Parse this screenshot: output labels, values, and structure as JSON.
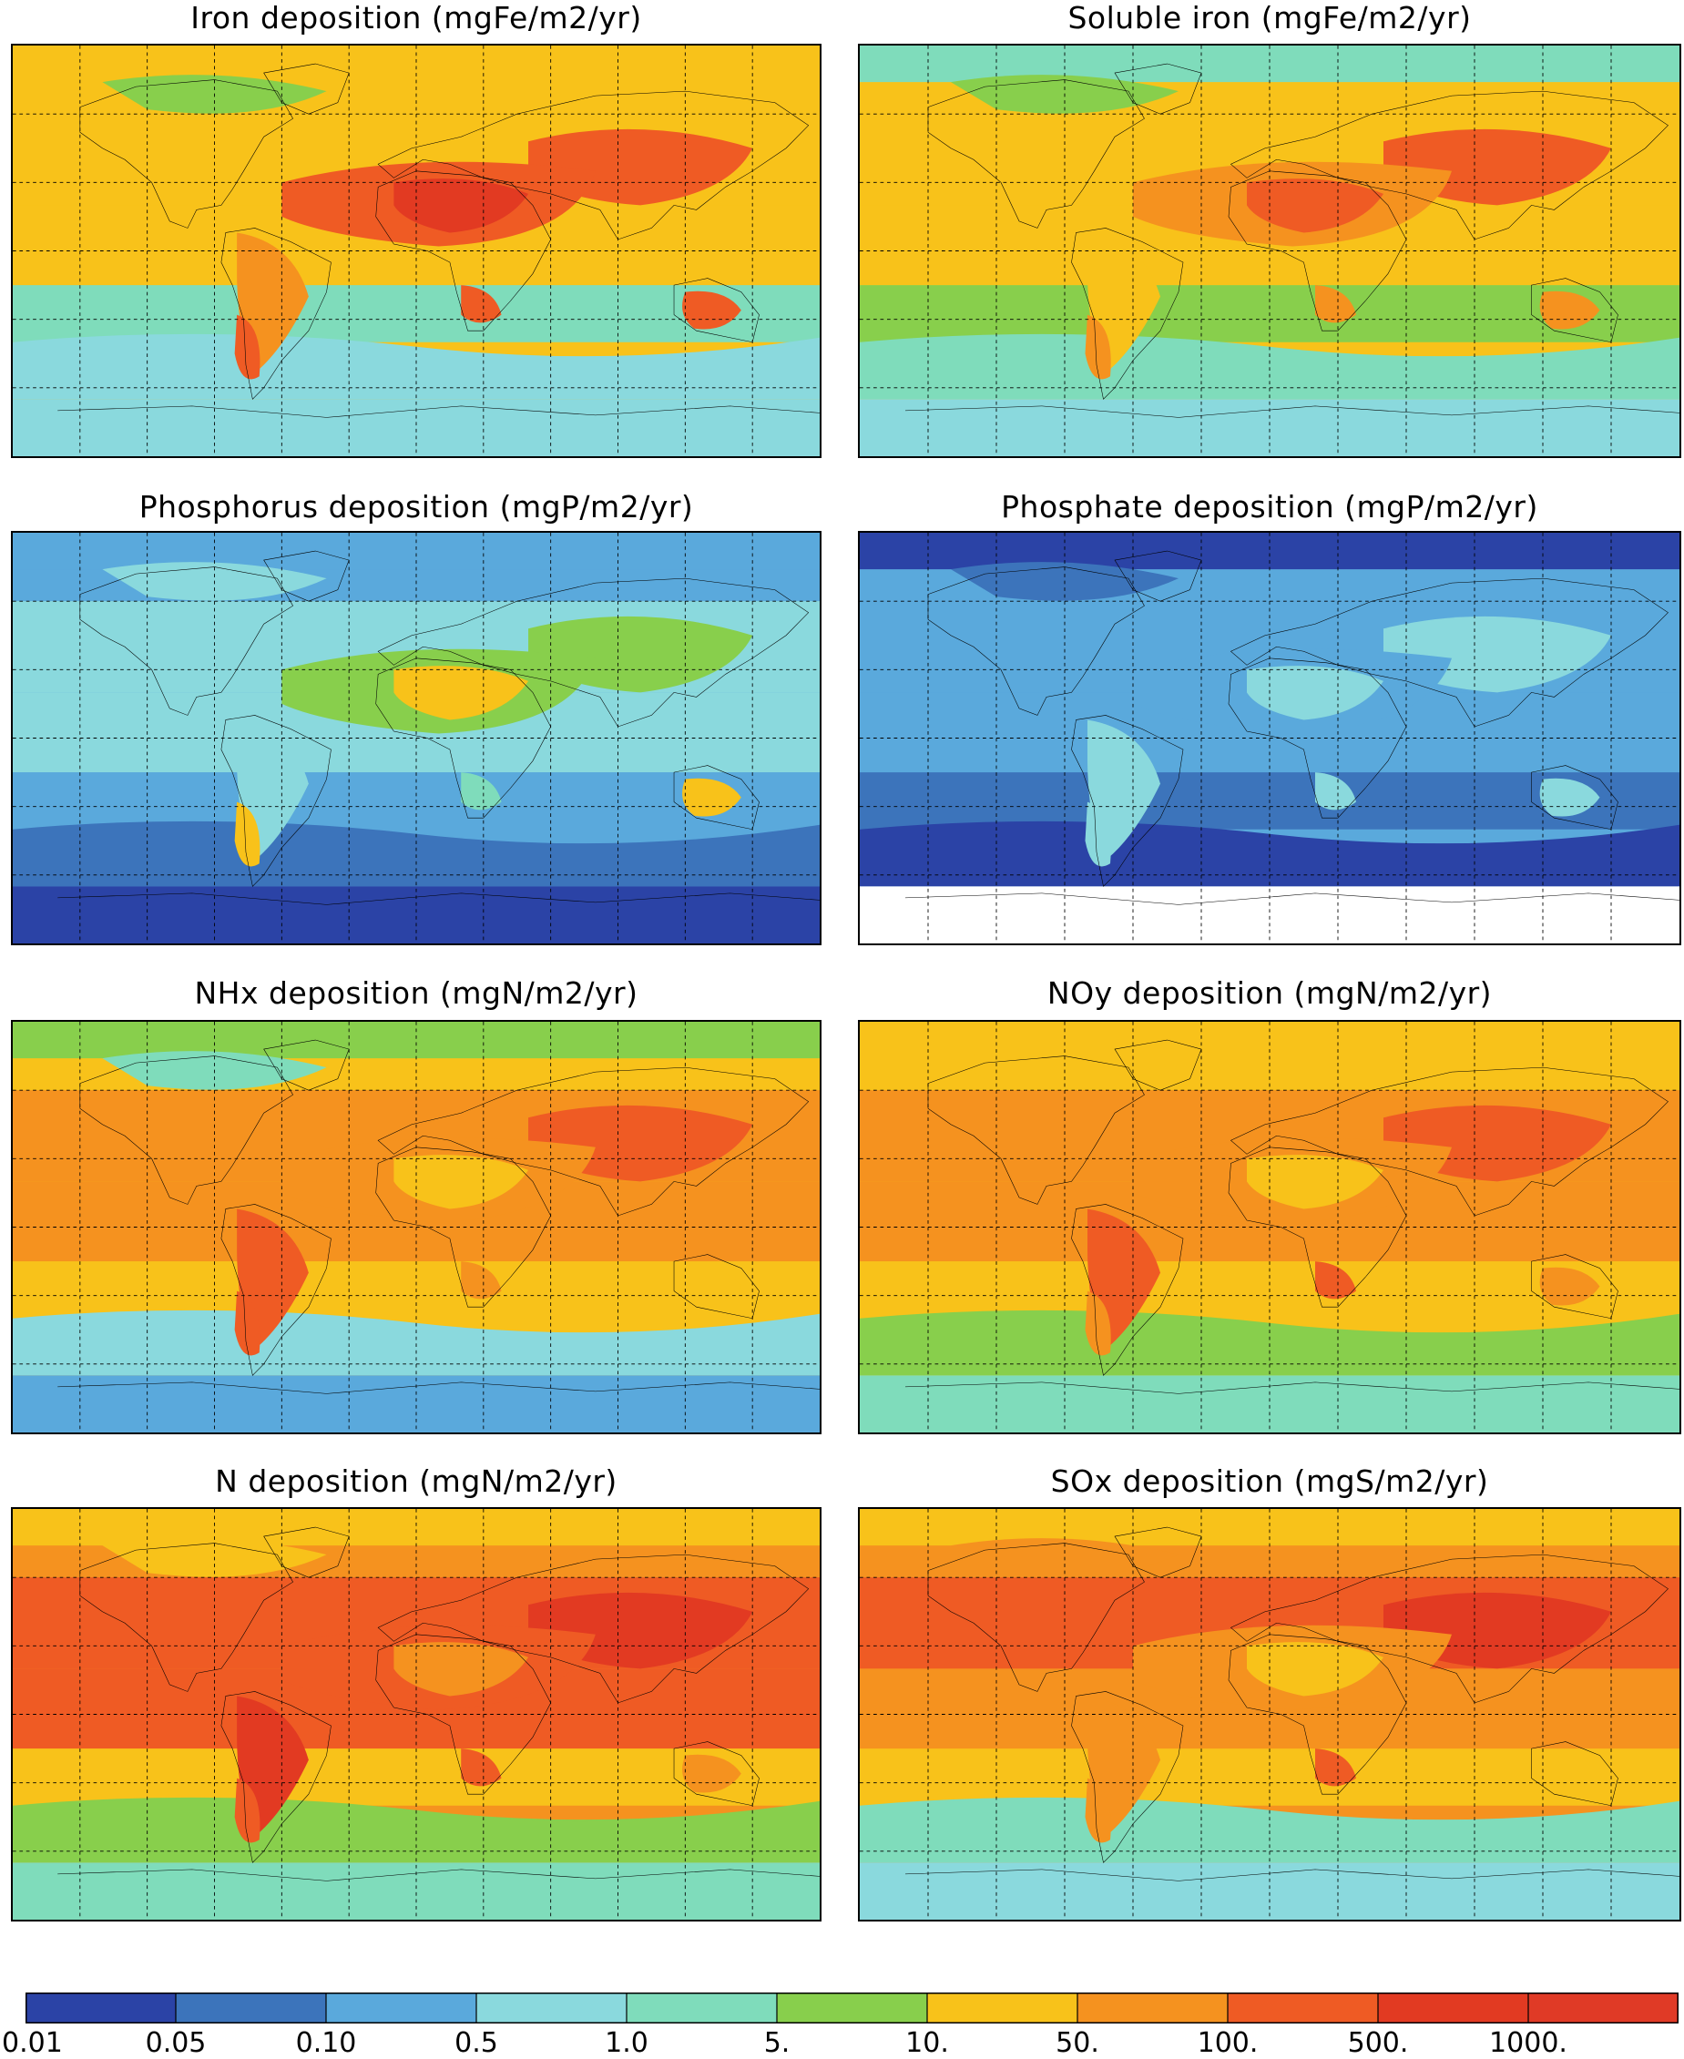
{
  "panels": [
    {
      "id": "iron",
      "title": "Iron deposition (mgFe/m2/yr)",
      "base": 6,
      "regions": {
        "arctic": 6,
        "arctic_land": 5,
        "northern_mid": 6,
        "sahara": 9,
        "saharan_plume": 8,
        "central_asia": 8,
        "tropics": 6,
        "southern_mid": 4,
        "southern_ocean": 3,
        "antarctica": 3,
        "australia_core": 8,
        "patagonia": 8,
        "south_africa": 8,
        "sa_west": 7
      }
    },
    {
      "id": "soluble-iron",
      "title": "Soluble iron (mgFe/m2/yr)",
      "base": 6,
      "regions": {
        "arctic": 4,
        "arctic_land": 5,
        "northern_mid": 6,
        "sahara": 8,
        "saharan_plume": 7,
        "central_asia": 8,
        "tropics": 6,
        "southern_mid": 5,
        "southern_ocean": 4,
        "antarctica": 3,
        "australia_core": 7,
        "patagonia": 7,
        "south_africa": 7,
        "sa_west": 6
      }
    },
    {
      "id": "phosphorus",
      "title": "Phosphorus deposition (mgP/m2/yr)",
      "base": 2,
      "regions": {
        "arctic": 2,
        "arctic_land": 3,
        "northern_mid": 3,
        "sahara": 6,
        "saharan_plume": 5,
        "central_asia": 5,
        "tropics": 3,
        "southern_mid": 2,
        "southern_ocean": 1,
        "antarctica": 0,
        "australia_core": 6,
        "patagonia": 6,
        "south_africa": 4,
        "sa_west": 3
      }
    },
    {
      "id": "phosphate",
      "title": "Phosphate deposition (mgP/m2/yr)",
      "base": 2,
      "regions": {
        "arctic": 0,
        "arctic_land": 1,
        "northern_mid": 2,
        "sahara": 3,
        "saharan_plume": 2,
        "central_asia": 3,
        "tropics": 2,
        "southern_mid": 1,
        "southern_ocean": 0,
        "antarctica": -1,
        "australia_core": 3,
        "patagonia": 3,
        "south_africa": 3,
        "sa_west": 3
      }
    },
    {
      "id": "nhx",
      "title": "NHx deposition (mgN/m2/yr)",
      "base": 6,
      "regions": {
        "arctic": 5,
        "arctic_land": 4,
        "northern_mid": 7,
        "sahara": 6,
        "saharan_plume": 7,
        "central_asia": 8,
        "tropics": 7,
        "southern_mid": 6,
        "southern_ocean": 3,
        "antarctica": 2,
        "australia_core": 6,
        "patagonia": 8,
        "south_africa": 7,
        "sa_west": 8
      }
    },
    {
      "id": "noy",
      "title": "NOy deposition (mgN/m2/yr)",
      "base": 6,
      "regions": {
        "arctic": 6,
        "arctic_land": 6,
        "northern_mid": 7,
        "sahara": 6,
        "saharan_plume": 7,
        "central_asia": 8,
        "tropics": 7,
        "southern_mid": 6,
        "southern_ocean": 5,
        "antarctica": 4,
        "australia_core": 7,
        "patagonia": 7,
        "south_africa": 8,
        "sa_west": 8
      }
    },
    {
      "id": "n",
      "title": "N deposition (mgN/m2/yr)",
      "base": 7,
      "regions": {
        "arctic": 6,
        "arctic_land": 6,
        "northern_mid": 8,
        "sahara": 7,
        "saharan_plume": 8,
        "central_asia": 9,
        "tropics": 8,
        "southern_mid": 6,
        "southern_ocean": 5,
        "antarctica": 4,
        "australia_core": 7,
        "patagonia": 8,
        "south_africa": 8,
        "sa_west": 9
      }
    },
    {
      "id": "sox",
      "title": "SOx deposition (mgS/m2/yr)",
      "base": 7,
      "regions": {
        "arctic": 6,
        "arctic_land": 7,
        "northern_mid": 8,
        "sahara": 6,
        "saharan_plume": 7,
        "central_asia": 9,
        "tropics": 7,
        "southern_mid": 6,
        "southern_ocean": 4,
        "antarctica": 3,
        "australia_core": 6,
        "patagonia": 7,
        "south_africa": 8,
        "sa_west": 7
      }
    }
  ],
  "colorbar": {
    "colors": [
      "#2b43a6",
      "#3c74bb",
      "#5aa9dc",
      "#8ad9dd",
      "#7fdcbb",
      "#88cf4c",
      "#f8c21a",
      "#f5921f",
      "#ef5b24",
      "#e23a22",
      "#e03a26"
    ],
    "labels": [
      "0.01",
      "0.05",
      "0.10",
      "0.5",
      "1.0",
      "5.",
      "10.",
      "50.",
      "100.",
      "500.",
      "1000."
    ]
  },
  "no_data_color": "#ffffff"
}
